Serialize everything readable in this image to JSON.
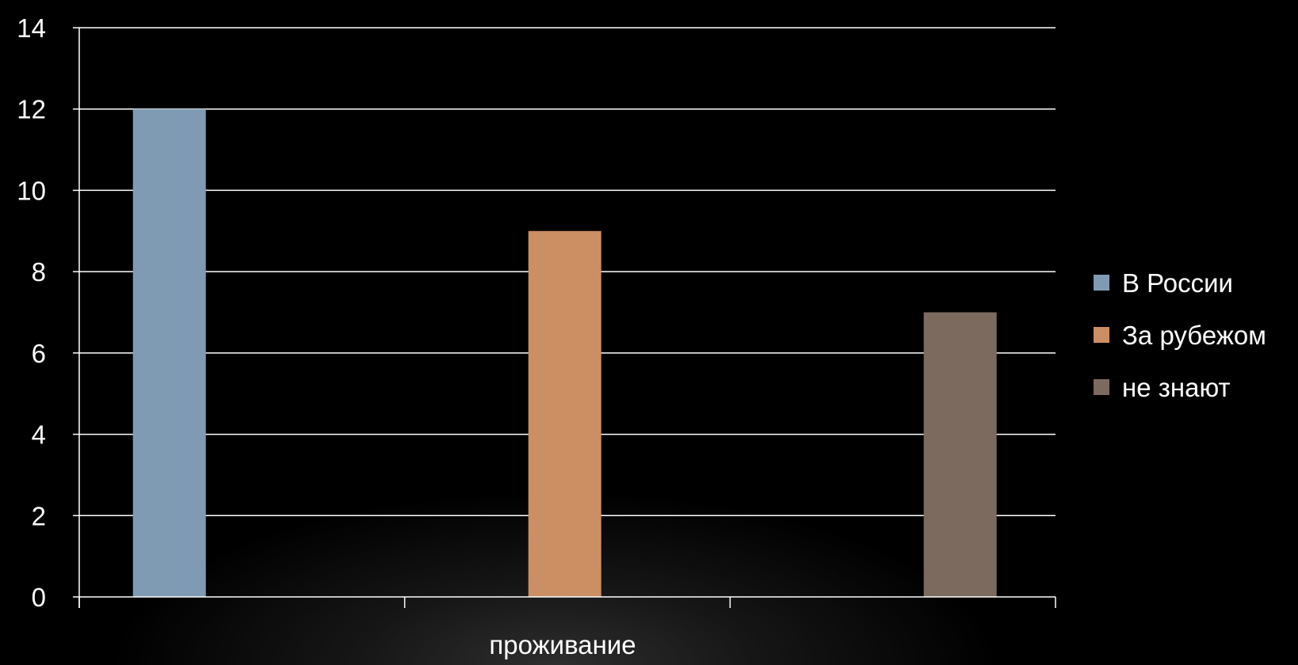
{
  "chart_data": {
    "type": "bar",
    "categories": [
      "проживание"
    ],
    "series": [
      {
        "name": "В России",
        "values": [
          12
        ],
        "color": "#7f9bb3"
      },
      {
        "name": "За рубежом",
        "values": [
          9
        ],
        "color": "#cc8e63"
      },
      {
        "name": "не знают",
        "values": [
          7
        ],
        "color": "#7d6a5f"
      }
    ],
    "title": "",
    "xlabel": "проживание",
    "ylabel": "",
    "ylim": [
      0,
      14
    ],
    "yticks": [
      0,
      2,
      4,
      6,
      8,
      10,
      12,
      14
    ],
    "grid": true,
    "legend": "right"
  }
}
